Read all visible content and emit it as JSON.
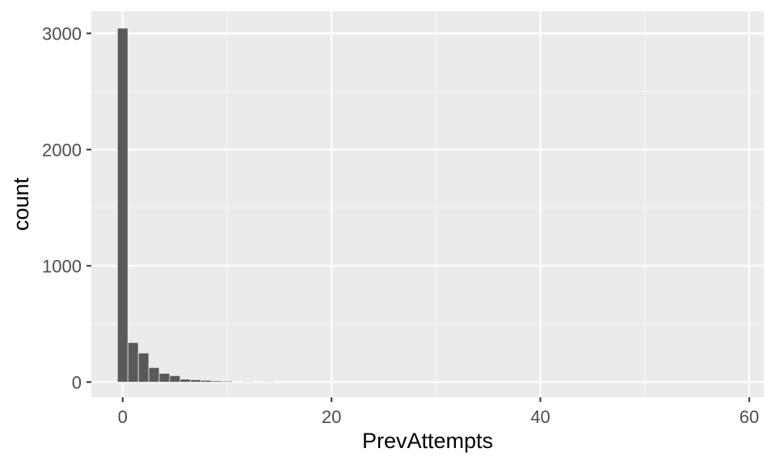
{
  "chart_data": {
    "type": "bar",
    "title": "",
    "xlabel": "PrevAttempts",
    "ylabel": "count",
    "xlim": [
      -3,
      61.4
    ],
    "ylim": [
      -130,
      3190
    ],
    "x_ticks": [
      0,
      20,
      40,
      60
    ],
    "x_minor_ticks": [
      10,
      30,
      50
    ],
    "y_ticks": [
      0,
      1000,
      2000,
      3000
    ],
    "y_minor_ticks": [
      500,
      1500,
      2500
    ],
    "bin_width": 1,
    "grid": true,
    "colors": {
      "panel_background": "#ebebeb",
      "grid_major": "#ffffff",
      "grid_minor": "#f5f5f5",
      "bar_fill": "#595959",
      "tick_text": "#4d4d4d",
      "axis_title": "#000000"
    },
    "x": [
      0,
      1,
      2,
      3,
      4,
      5,
      6,
      7,
      8,
      9,
      10,
      12,
      14
    ],
    "values": [
      3045,
      340,
      250,
      125,
      75,
      55,
      25,
      20,
      15,
      10,
      8,
      5,
      4
    ]
  }
}
